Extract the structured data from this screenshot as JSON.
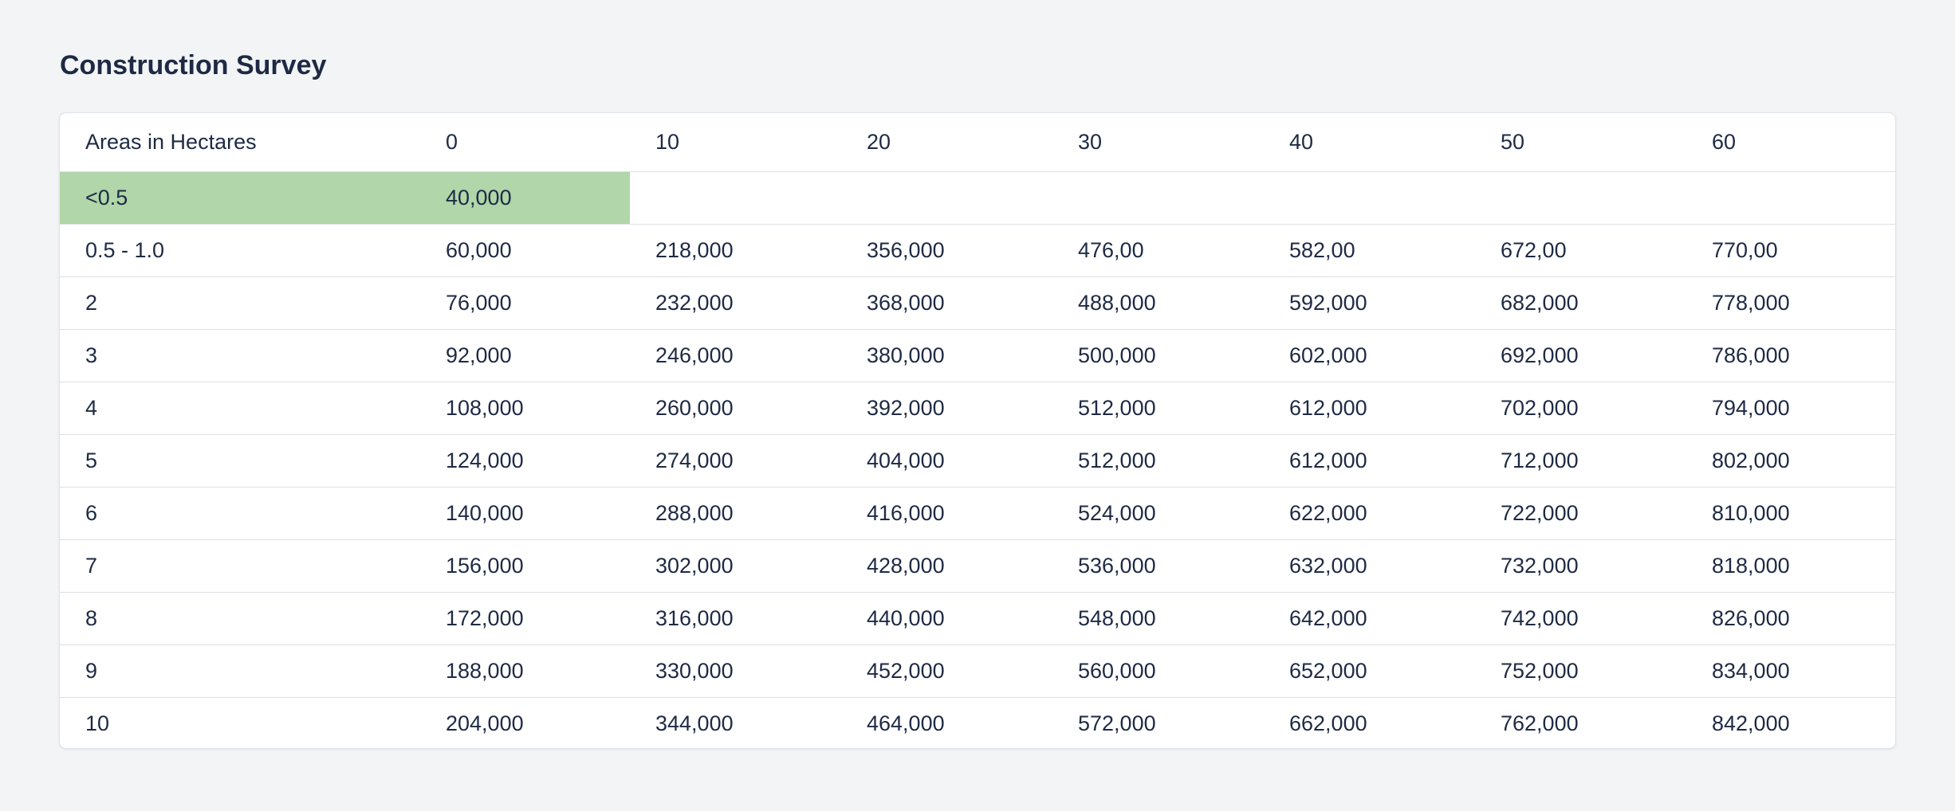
{
  "page": {
    "title": "Construction Survey"
  },
  "colors": {
    "background": "#f3f4f6",
    "text": "#1e2a44",
    "highlight": "#b0d6a9",
    "border": "#dcdfe4"
  },
  "table": {
    "headers": [
      "Areas in Hectares",
      "0",
      "10",
      "20",
      "30",
      "40",
      "50",
      "60"
    ],
    "rows": [
      [
        "<0.5",
        "40,000",
        "",
        "",
        "",
        "",
        "",
        ""
      ],
      [
        "0.5 - 1.0",
        "60,000",
        "218,000",
        "356,000",
        "476,00",
        "582,00",
        "672,00",
        "770,00"
      ],
      [
        "2",
        "76,000",
        "232,000",
        "368,000",
        "488,000",
        "592,000",
        "682,000",
        "778,000"
      ],
      [
        "3",
        "92,000",
        "246,000",
        "380,000",
        "500,000",
        "602,000",
        "692,000",
        "786,000"
      ],
      [
        "4",
        "108,000",
        "260,000",
        "392,000",
        "512,000",
        "612,000",
        "702,000",
        "794,000"
      ],
      [
        "5",
        "124,000",
        "274,000",
        "404,000",
        "512,000",
        "612,000",
        "712,000",
        "802,000"
      ],
      [
        "6",
        "140,000",
        "288,000",
        "416,000",
        "524,000",
        "622,000",
        "722,000",
        "810,000"
      ],
      [
        "7",
        "156,000",
        "302,000",
        "428,000",
        "536,000",
        "632,000",
        "732,000",
        "818,000"
      ],
      [
        "8",
        "172,000",
        "316,000",
        "440,000",
        "548,000",
        "642,000",
        "742,000",
        "826,000"
      ],
      [
        "9",
        "188,000",
        "330,000",
        "452,000",
        "560,000",
        "652,000",
        "752,000",
        "834,000"
      ],
      [
        "10",
        "204,000",
        "344,000",
        "464,000",
        "572,000",
        "662,000",
        "762,000",
        "842,000"
      ]
    ],
    "highlighted_cells": [
      [
        0,
        0
      ],
      [
        0,
        1
      ]
    ]
  }
}
